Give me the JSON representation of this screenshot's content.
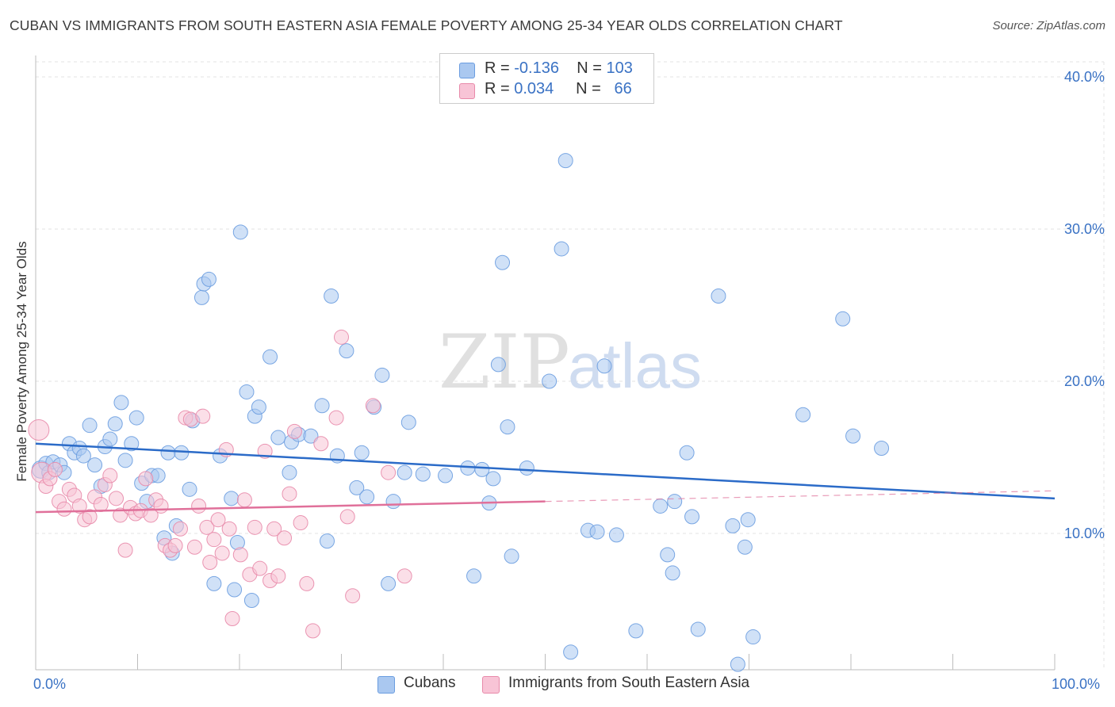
{
  "title": "CUBAN VS IMMIGRANTS FROM SOUTH EASTERN ASIA FEMALE POVERTY AMONG 25-34 YEAR OLDS CORRELATION CHART",
  "source": "Source: ZipAtlas.com",
  "watermark": {
    "zip": "ZIP",
    "atlas": "atlas"
  },
  "legend": {
    "rows": [
      {
        "r_label": "R =",
        "r_value": "-0.136",
        "n_label": "N =",
        "n_value": "103",
        "color": "#aac8f0",
        "border": "#6b9de0"
      },
      {
        "r_label": "R =",
        "r_value": "0.034",
        "n_label": "N =",
        "n_value": "66",
        "color": "#f8c4d6",
        "border": "#e88aaa"
      }
    ]
  },
  "bottom_legend": [
    {
      "label": "Cubans",
      "color": "#aac8f0",
      "border": "#6b9de0"
    },
    {
      "label": "Immigrants from South Eastern Asia",
      "color": "#f8c4d6",
      "border": "#e88aaa"
    }
  ],
  "chart_data": {
    "type": "scatter",
    "xlabel": "",
    "ylabel": "Female Poverty Among 25-34 Year Olds",
    "xlim": [
      0,
      100
    ],
    "ylim": [
      0,
      40
    ],
    "x_tick_labels": {
      "left": "0.0%",
      "right": "100.0%"
    },
    "y_ticks": [
      10,
      20,
      30,
      40
    ],
    "y_tick_labels": [
      "10.0%",
      "20.0%",
      "30.0%",
      "40.0%"
    ],
    "grid": true,
    "legend_position": "top-center",
    "series": [
      {
        "name": "Cubans",
        "color": "#6b9de0",
        "fill": "#aac8f0",
        "trend": {
          "x0": 0,
          "y0": 15.9,
          "x1": 100,
          "y1": 12.3,
          "color": "#2b6bc8"
        },
        "points": [
          [
            0.5,
            14.2
          ],
          [
            1.0,
            14.6
          ],
          [
            1.3,
            14.0
          ],
          [
            1.7,
            14.7
          ],
          [
            2.4,
            14.5
          ],
          [
            2.8,
            14.0
          ],
          [
            3.3,
            15.9
          ],
          [
            3.8,
            15.3
          ],
          [
            4.3,
            15.6
          ],
          [
            4.7,
            15.1
          ],
          [
            5.3,
            17.1
          ],
          [
            5.8,
            14.5
          ],
          [
            6.4,
            13.1
          ],
          [
            6.8,
            15.7
          ],
          [
            7.3,
            16.2
          ],
          [
            7.8,
            17.2
          ],
          [
            8.4,
            18.6
          ],
          [
            8.8,
            14.8
          ],
          [
            9.4,
            15.9
          ],
          [
            9.9,
            17.6
          ],
          [
            10.4,
            13.3
          ],
          [
            10.9,
            12.1
          ],
          [
            11.4,
            13.8
          ],
          [
            12.0,
            13.8
          ],
          [
            12.6,
            9.7
          ],
          [
            13.0,
            15.3
          ],
          [
            13.4,
            8.7
          ],
          [
            13.8,
            10.5
          ],
          [
            14.3,
            15.3
          ],
          [
            15.4,
            17.4
          ],
          [
            15.1,
            12.9
          ],
          [
            16.3,
            25.5
          ],
          [
            16.5,
            26.4
          ],
          [
            17.0,
            26.7
          ],
          [
            17.5,
            6.7
          ],
          [
            18.1,
            15.1
          ],
          [
            19.2,
            12.3
          ],
          [
            19.5,
            6.3
          ],
          [
            19.8,
            9.4
          ],
          [
            20.1,
            29.8
          ],
          [
            20.7,
            19.3
          ],
          [
            21.2,
            5.6
          ],
          [
            21.5,
            17.7
          ],
          [
            21.9,
            18.3
          ],
          [
            23.0,
            21.6
          ],
          [
            23.8,
            16.3
          ],
          [
            24.9,
            14.0
          ],
          [
            25.1,
            16.0
          ],
          [
            25.8,
            16.5
          ],
          [
            27.0,
            16.4
          ],
          [
            28.1,
            18.4
          ],
          [
            28.6,
            9.5
          ],
          [
            29.0,
            25.6
          ],
          [
            29.6,
            15.1
          ],
          [
            30.5,
            22.0
          ],
          [
            31.5,
            13.0
          ],
          [
            32.0,
            15.3
          ],
          [
            32.5,
            12.4
          ],
          [
            33.2,
            18.3
          ],
          [
            34.0,
            20.4
          ],
          [
            34.6,
            6.7
          ],
          [
            35.1,
            12.1
          ],
          [
            36.2,
            14.0
          ],
          [
            36.6,
            17.3
          ],
          [
            38.0,
            13.9
          ],
          [
            40.2,
            13.8
          ],
          [
            42.4,
            14.3
          ],
          [
            43.0,
            7.2
          ],
          [
            43.8,
            14.2
          ],
          [
            44.5,
            12.0
          ],
          [
            44.9,
            13.6
          ],
          [
            45.4,
            21.1
          ],
          [
            45.8,
            27.8
          ],
          [
            46.3,
            17.0
          ],
          [
            46.7,
            8.5
          ],
          [
            48.2,
            14.3
          ],
          [
            50.4,
            20.0
          ],
          [
            51.6,
            28.7
          ],
          [
            52.0,
            34.5
          ],
          [
            52.5,
            2.2
          ],
          [
            54.2,
            10.2
          ],
          [
            55.1,
            10.1
          ],
          [
            55.8,
            21.0
          ],
          [
            57.0,
            9.9
          ],
          [
            58.9,
            3.6
          ],
          [
            61.3,
            11.8
          ],
          [
            62.0,
            8.6
          ],
          [
            62.7,
            12.1
          ],
          [
            62.5,
            7.4
          ],
          [
            63.9,
            15.3
          ],
          [
            64.4,
            11.1
          ],
          [
            65.0,
            3.7
          ],
          [
            67.0,
            25.6
          ],
          [
            68.4,
            10.5
          ],
          [
            68.9,
            1.4
          ],
          [
            69.6,
            9.1
          ],
          [
            69.9,
            10.9
          ],
          [
            70.4,
            3.2
          ],
          [
            75.3,
            17.8
          ],
          [
            79.2,
            24.1
          ],
          [
            80.2,
            16.4
          ],
          [
            83.0,
            15.6
          ]
        ]
      },
      {
        "name": "Immigrants from South Eastern Asia",
        "color": "#e88aaa",
        "fill": "#f8c4d6",
        "trend": {
          "x0": 0,
          "y0": 11.4,
          "x1": 50,
          "y1": 12.1,
          "color": "#e0709a",
          "dash_to_x": 100,
          "dash_to_y": 12.8
        },
        "points": [
          [
            0.3,
            16.8
          ],
          [
            0.6,
            14.0
          ],
          [
            1.0,
            13.1
          ],
          [
            1.4,
            13.6
          ],
          [
            1.9,
            14.2
          ],
          [
            2.3,
            12.1
          ],
          [
            2.8,
            11.6
          ],
          [
            3.3,
            12.9
          ],
          [
            3.8,
            12.5
          ],
          [
            4.3,
            11.8
          ],
          [
            4.8,
            10.9
          ],
          [
            5.3,
            11.1
          ],
          [
            5.8,
            12.4
          ],
          [
            6.4,
            11.9
          ],
          [
            6.8,
            13.2
          ],
          [
            7.3,
            13.8
          ],
          [
            7.9,
            12.3
          ],
          [
            8.3,
            11.2
          ],
          [
            8.8,
            8.9
          ],
          [
            9.3,
            11.7
          ],
          [
            9.8,
            11.3
          ],
          [
            10.3,
            11.5
          ],
          [
            10.8,
            13.6
          ],
          [
            11.3,
            11.2
          ],
          [
            11.8,
            12.2
          ],
          [
            12.3,
            11.8
          ],
          [
            12.7,
            9.2
          ],
          [
            13.2,
            8.9
          ],
          [
            13.7,
            9.2
          ],
          [
            14.2,
            10.3
          ],
          [
            14.7,
            17.6
          ],
          [
            15.2,
            17.5
          ],
          [
            15.6,
            9.1
          ],
          [
            16.0,
            11.8
          ],
          [
            16.4,
            17.7
          ],
          [
            16.8,
            10.4
          ],
          [
            17.1,
            8.1
          ],
          [
            17.5,
            9.6
          ],
          [
            17.9,
            10.9
          ],
          [
            18.3,
            8.7
          ],
          [
            18.7,
            15.5
          ],
          [
            19.0,
            10.3
          ],
          [
            19.3,
            4.4
          ],
          [
            20.1,
            8.6
          ],
          [
            20.5,
            12.2
          ],
          [
            21.0,
            7.3
          ],
          [
            21.5,
            10.4
          ],
          [
            22.0,
            7.7
          ],
          [
            22.5,
            15.4
          ],
          [
            23.0,
            6.9
          ],
          [
            23.4,
            10.3
          ],
          [
            23.8,
            7.2
          ],
          [
            24.4,
            9.7
          ],
          [
            24.9,
            12.6
          ],
          [
            25.4,
            16.7
          ],
          [
            26.0,
            10.7
          ],
          [
            26.6,
            6.7
          ],
          [
            27.2,
            3.6
          ],
          [
            28.0,
            15.9
          ],
          [
            29.5,
            17.6
          ],
          [
            30.0,
            22.9
          ],
          [
            30.6,
            11.1
          ],
          [
            31.1,
            5.9
          ],
          [
            33.1,
            18.4
          ],
          [
            34.6,
            14.0
          ],
          [
            36.2,
            7.2
          ]
        ]
      }
    ]
  }
}
